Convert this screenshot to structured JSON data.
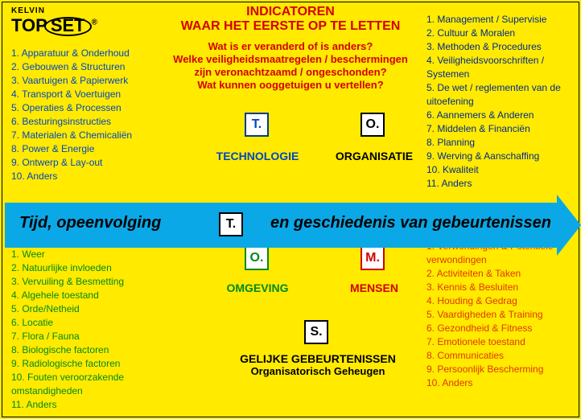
{
  "logo": {
    "kelvin": "KELVIN",
    "top": "TOP",
    "set": "SET",
    "reg": "®"
  },
  "header": {
    "line1": "INDICATOREN",
    "line2": "WAAR HET EERSTE OP TE LETTEN",
    "q1": "Wat is er veranderd of is anders?",
    "q2": "Welke veiligheidsmaatregelen / beschermingen",
    "q3": "zijn veronachtzaamd / ongeschonden?",
    "q4": "Wat kunnen ooggetuigen u vertellen?"
  },
  "boxes": {
    "tech": "T.",
    "org": "O.",
    "env": "O.",
    "men": "M.",
    "sim": "S.",
    "tmid": "T."
  },
  "labels": {
    "tech": "TECHNOLOGIE",
    "org": "ORGANISATIE",
    "env": "OMGEVING",
    "men": "MENSEN",
    "sim1": "GELIJKE GEBEURTENISSEN",
    "sim2": "Organisatorisch Geheugen"
  },
  "arrow": {
    "left": "Tijd, opeenvolging",
    "right": "en geschiedenis van gebeurtenissen"
  },
  "lists": {
    "leftTop": [
      "1.  Apparatuur & Onderhoud",
      "2.  Gebouwen & Structuren",
      "3.  Vaartuigen & Papierwerk",
      "4.  Transport & Voertuigen",
      "5.  Operaties & Processen",
      "6.  Besturingsinstructies",
      "7.  Materialen & Chemicaliën",
      "8.  Power & Energie",
      "9.  Ontwerp & Lay-out",
      "10. Anders"
    ],
    "rightTop": [
      "1.  Management /  Supervisie",
      "2.  Cultuur & Moralen",
      "3.  Methoden & Procedures",
      "4.  Veiligheidsvoorschriften / Systemen",
      "5.  De wet / reglementen van de uitoefening",
      "6.  Aannemers & Anderen",
      "7.  Middelen & Financiën",
      "8.  Planning",
      "9.  Werving & Aanschaffing",
      "10. Kwaliteit",
      "11. Anders"
    ],
    "leftBot": [
      "1.  Weer",
      "2.  Natuurlijke invloeden",
      "3.  Vervuiling & Besmetting",
      "4.  Algehele toestand",
      "5.  Orde/Netheid",
      "6.  Locatie",
      "7.  Flora / Fauna",
      "8.  Biologische factoren",
      "9.  Radiologische factoren",
      "10. Fouten veroorzakende omstandigheden",
      "11. Anders"
    ],
    "rightBot": [
      "1.  Verwondingen & Potentiële verwondingen",
      "2.  Activiteiten & Taken",
      "3.  Kennis & Besluiten",
      "4.  Houding & Gedrag",
      "5.  Vaardigheden & Training",
      "6.  Gezondheid & Fitness",
      "7.  Emotionele toestand",
      "8.  Communicaties",
      "9.  Persoonlijk Bescherming",
      "10. Anders"
    ]
  },
  "colors": {
    "bg": "#ffea00",
    "red": "#d40000",
    "blue": "#0047c2",
    "darkblue": "#002a8a",
    "green": "#008a1a",
    "orange": "#e03800",
    "arrow": "#0aa8e6"
  }
}
